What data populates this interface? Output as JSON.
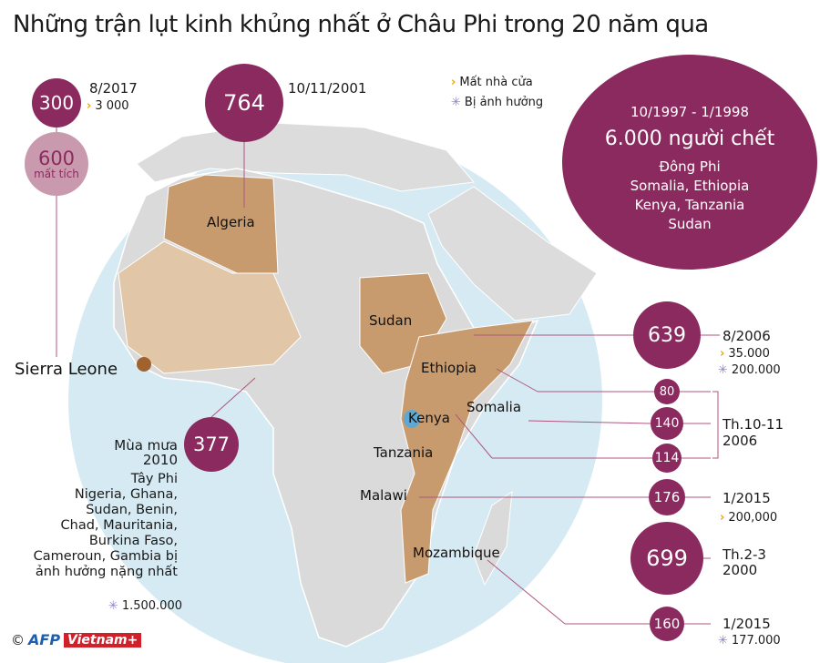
{
  "title": "Những trận lụt kinh khủng nhất ở Châu Phi trong 20 năm qua",
  "legend": {
    "homeless": "Mất nhà cửa",
    "affected": "Bị ảnh hưởng"
  },
  "colors": {
    "bubble": "#8b2a5e",
    "missing": "#c99aae",
    "highlight": "#c89b6e",
    "ocean": "#d6eaf3",
    "land": "#d9d9d9",
    "homeless_icon": "#f0a500",
    "affected_icon": "#8a84c4"
  },
  "countries": {
    "algeria": "Algeria",
    "sudan": "Sudan",
    "ethiopia": "Ethiopia",
    "somalia": "Somalia",
    "kenya": "Kenya",
    "tanzania": "Tanzania",
    "malawi": "Malawi",
    "mozambique": "Mozambique",
    "sierra_leone": "Sierra Leone"
  },
  "events": {
    "sierra_leone": {
      "deaths": "300",
      "date": "8/2017",
      "homeless": "3 000",
      "missing_value": "600",
      "missing_label": "mất tích"
    },
    "algeria": {
      "deaths": "764",
      "date": "10/11/2001"
    },
    "east_africa": {
      "date": "10/1997 - 1/1998",
      "deaths": "6.000 người chết",
      "region": "Đông Phi",
      "countries": [
        "Somalia, Ethiopia",
        "Kenya, Tanzania",
        "Sudan"
      ]
    },
    "ethiopia": {
      "deaths": "639",
      "date": "8/2006",
      "homeless": "35.000",
      "affected": "200.000"
    },
    "oct_nov_2006": {
      "values": [
        "80",
        "140",
        "114"
      ],
      "date_line1": "Th.10-11",
      "date_line2": "2006"
    },
    "malawi": {
      "deaths": "176",
      "date": "1/2015",
      "homeless": "200,000"
    },
    "mozambique_2000": {
      "deaths": "699",
      "date_line1": "Th.2-3",
      "date_line2": "2000"
    },
    "mozambique_2015": {
      "deaths": "160",
      "date": "1/2015",
      "affected": "177.000"
    },
    "west_africa": {
      "deaths": "377",
      "season_line1": "Mùa mưa",
      "season_line2": "2010",
      "lines": [
        "Tây Phi",
        "Nigeria, Ghana,",
        "Sudan, Benin,",
        "Chad, Mauritania,",
        "Burkina Faso,",
        "Cameroun, Gambia bị",
        "ảnh hưởng nặng nhất"
      ],
      "affected": "1.500.000"
    }
  },
  "credit": {
    "copyright": "©",
    "afp": "AFP",
    "vietnam": "Vietnam+"
  }
}
